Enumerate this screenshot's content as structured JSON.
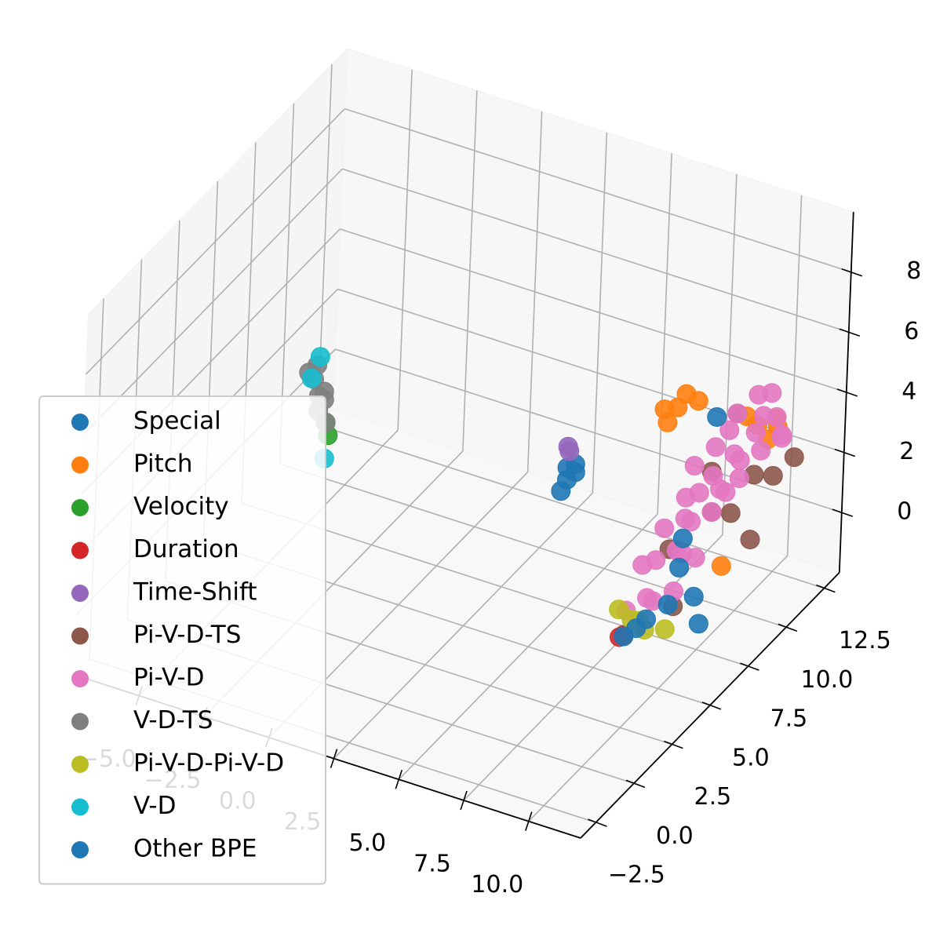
{
  "chart_data": {
    "type": "scatter3d",
    "xlim": [
      -7.5,
      12
    ],
    "ylim": [
      -3.5,
      13.5
    ],
    "zlim": [
      -2,
      10
    ],
    "xticks": [
      {
        "value": -5,
        "label": "−5.0"
      },
      {
        "value": -2.5,
        "label": "−2.5"
      },
      {
        "value": 0,
        "label": "0.0"
      },
      2.5,
      {
        "value": 5,
        "label": "5.0"
      },
      7.5,
      {
        "value": 10,
        "label": "10.0"
      }
    ],
    "yticks": [
      {
        "value": -2.5,
        "label": "−2.5"
      },
      {
        "value": 0,
        "label": "0.0"
      },
      2.5,
      {
        "value": 5,
        "label": "5.0"
      },
      7.5,
      {
        "value": 10,
        "label": "10.0"
      },
      12.5
    ],
    "zticks": [
      0,
      2,
      4,
      6,
      8
    ],
    "grid": true,
    "legend": "lower left",
    "series": [
      {
        "name": "Special",
        "color": "#1f77b4",
        "x": [
          4,
          4,
          4.2,
          3.9,
          4.3
        ],
        "y": [
          9,
          9,
          9.2,
          8.8,
          9
        ],
        "z": [
          1.6,
          1.2,
          1.4,
          0.9,
          1.8
        ]
      },
      {
        "name": "Pitch",
        "color": "#ff7f0e",
        "x": [
          7,
          6.5,
          7.5,
          6.8,
          7.2,
          9.5,
          10,
          9.2,
          10.2,
          9.8,
          10
        ],
        "y": [
          11,
          11,
          11.5,
          10.7,
          11.2,
          12,
          12.5,
          11.8,
          12,
          12.2,
          9
        ],
        "z": [
          3.4,
          3.2,
          3.5,
          3.0,
          3.8,
          3,
          2.8,
          3.3,
          3.4,
          2.5,
          0
        ]
      },
      {
        "name": "Velocity",
        "color": "#2ca02c",
        "x": [
          -4.6,
          -4.7
        ],
        "y": [
          8,
          8
        ],
        "z": [
          0.8,
          1.2
        ]
      },
      {
        "name": "Duration",
        "color": "#d62728",
        "x": [
          7.4,
          7.5
        ],
        "y": [
          6.9,
          7
        ],
        "z": [
          -2,
          -1.95
        ]
      },
      {
        "name": "Time-Shift",
        "color": "#9467bd",
        "x": [
          4,
          4
        ],
        "y": [
          9,
          9.1
        ],
        "z": [
          2.3,
          2.1
        ]
      },
      {
        "name": "Pi-V-D-TS",
        "color": "#8c564b",
        "x": [
          9,
          10,
          10.5,
          8,
          9.5,
          11,
          8.5,
          10,
          9,
          11.5
        ],
        "y": [
          10,
          11,
          10,
          9,
          9,
          10.5,
          8.5,
          9.5,
          11.5,
          11
        ],
        "z": [
          1,
          2,
          0.5,
          0,
          3,
          2.5,
          -1.5,
          1.5,
          3.5,
          3
        ]
      },
      {
        "name": "Pi-V-D",
        "color": "#e377c2",
        "x": [
          7,
          7.5,
          8,
          8.5,
          7,
          7.5,
          8,
          8.5,
          9,
          7.5,
          8,
          8.5,
          9,
          8,
          8.5,
          9,
          9.5,
          8,
          9,
          10,
          8.5,
          9.5,
          10,
          9,
          10,
          10.5,
          9,
          10,
          11,
          9.5,
          10.5,
          11,
          10
        ],
        "y": [
          8,
          8.5,
          8,
          8.5,
          9,
          9,
          9.5,
          9,
          9,
          9.5,
          10,
          9.5,
          10,
          10,
          10,
          10.5,
          10,
          10.5,
          10,
          10,
          11,
          10.5,
          10,
          11,
          11,
          10.5,
          11.5,
          11.5,
          11,
          12,
          11.5,
          11,
          12
        ],
        "z": [
          -1.8,
          -1.5,
          -1.2,
          -1,
          -0.8,
          -0.5,
          -0.3,
          0,
          0,
          0.3,
          0.5,
          0.8,
          1,
          1.2,
          1.5,
          1.5,
          1.8,
          2,
          2.2,
          2.4,
          2.5,
          2.8,
          3,
          3.2,
          3.4,
          3.2,
          3.5,
          3.7,
          3.5,
          4,
          3.8,
          3.6,
          4.2
        ]
      },
      {
        "name": "V-D-TS",
        "color": "#7f7f7f",
        "x": [
          -5,
          -5,
          -5.2,
          -4.8,
          -5.3,
          -4.9,
          -4.7,
          -5.1
        ],
        "y": [
          8,
          8,
          8,
          8,
          7.8,
          8.2,
          8,
          8
        ],
        "z": [
          1.5,
          2,
          2.5,
          2.2,
          2.8,
          1.8,
          1.2,
          3
        ]
      },
      {
        "name": "Pi-V-D-Pi-V-D",
        "color": "#bcbd22",
        "x": [
          7.5,
          8,
          7.5,
          8.5,
          7
        ],
        "y": [
          8,
          7.5,
          7.5,
          8,
          7.5
        ],
        "z": [
          -2,
          -1.9,
          -1.7,
          -2,
          -1.5
        ]
      },
      {
        "name": "V-D",
        "color": "#17becf",
        "x": [
          -5,
          -4.7,
          -5.3
        ],
        "y": [
          8,
          8,
          8
        ],
        "z": [
          3.3,
          0,
          2.5
        ]
      },
      {
        "name": "Other BPE",
        "color": "#1f77b4",
        "x": [
          7.5,
          7.8,
          8,
          8.3,
          9,
          9.5,
          8.5,
          8.4,
          8.5
        ],
        "y": [
          7,
          7.3,
          7.6,
          8.5,
          9,
          8.5,
          9,
          9,
          11
        ],
        "z": [
          -2,
          -1.8,
          -1.6,
          -1.5,
          -1.3,
          -1.8,
          0.5,
          -0.5,
          3.5
        ]
      }
    ]
  }
}
